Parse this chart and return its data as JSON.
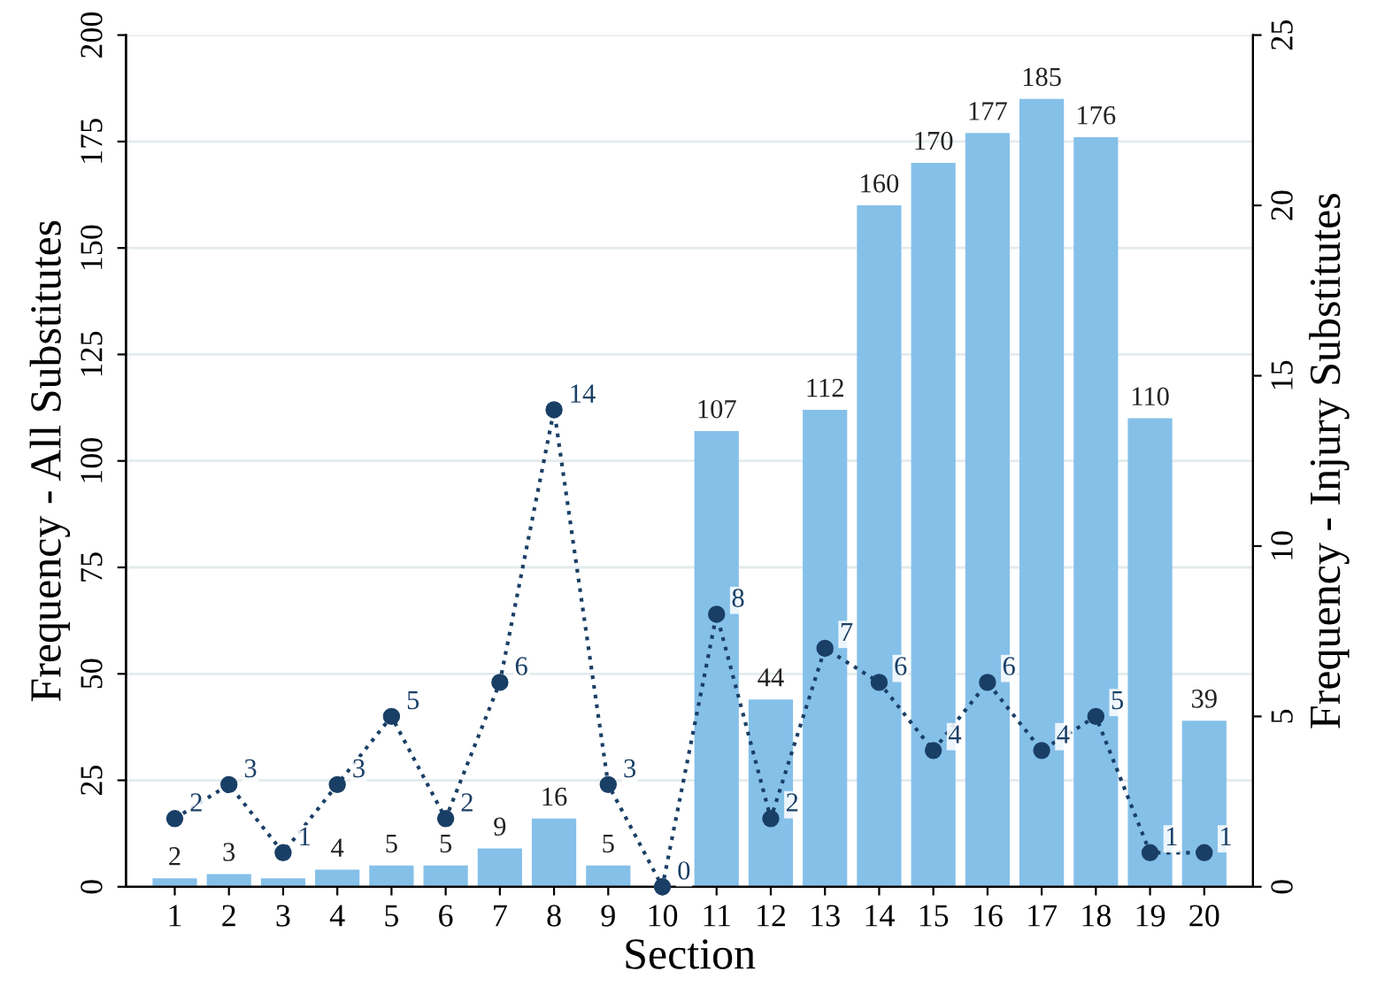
{
  "chart_data": {
    "type": "bar",
    "xlabel": "Section",
    "ylabel": "Frequency - All Substitutes",
    "y2label": "Frequency - Injury Substitutes",
    "categories": [
      "1",
      "2",
      "3",
      "4",
      "5",
      "6",
      "7",
      "8",
      "9",
      "10",
      "11",
      "12",
      "13",
      "14",
      "15",
      "16",
      "17",
      "18",
      "19",
      "20"
    ],
    "series": [
      {
        "color": "#85c0e9",
        "values": [
          2,
          3,
          2,
          4,
          5,
          5,
          9,
          16,
          5,
          0,
          107,
          44,
          112,
          160,
          170,
          177,
          185,
          176,
          110,
          39
        ],
        "value_labels": [
          "2",
          "3",
          null,
          "4",
          "5",
          "5",
          "9",
          "16",
          "5",
          null,
          "107",
          "44",
          "112",
          "160",
          "170",
          "177",
          "185",
          "176",
          "110",
          "39"
        ]
      },
      {
        "type": "line",
        "axis": "y2",
        "color": "#1a3f66",
        "marker": "circle",
        "line_style": "dotted",
        "values": [
          2,
          3,
          1,
          3,
          5,
          2,
          6,
          14,
          3,
          0,
          8,
          2,
          7,
          6,
          4,
          6,
          4,
          5,
          1,
          1
        ],
        "value_labels": [
          "2",
          "3",
          "1",
          "3",
          "5",
          "2",
          "6",
          "14",
          "3",
          "0",
          "8",
          "2",
          "7",
          "6",
          "4",
          "6",
          "4",
          "5",
          "1",
          "1"
        ]
      }
    ],
    "ylim": [
      0,
      200
    ],
    "yticks": [
      0,
      25,
      50,
      75,
      100,
      125,
      150,
      175,
      200
    ],
    "y2lim": [
      0,
      25
    ],
    "y2ticks": [
      0,
      5,
      10,
      15,
      20,
      25
    ],
    "grid": "y"
  }
}
